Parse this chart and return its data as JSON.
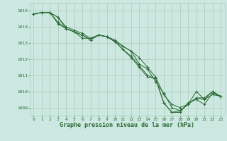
{
  "title": "Graphe pression niveau de la mer (hPa)",
  "background_color": "#cce8e0",
  "grid_color": "#aaccbb",
  "line_color": "#2d6a35",
  "xlim": [
    -0.5,
    23.5
  ],
  "ylim": [
    1008.5,
    1015.5
  ],
  "xticks": [
    0,
    1,
    2,
    3,
    4,
    5,
    6,
    7,
    8,
    9,
    10,
    11,
    12,
    13,
    14,
    15,
    16,
    17,
    18,
    19,
    20,
    21,
    22,
    23
  ],
  "yticks": [
    1009,
    1010,
    1011,
    1012,
    1013,
    1014,
    1015
  ],
  "series": [
    [
      1014.8,
      1014.9,
      1014.9,
      1014.6,
      1014.0,
      1013.8,
      1013.6,
      1013.3,
      1013.5,
      1013.4,
      1013.2,
      1012.8,
      1012.5,
      1012.1,
      1011.5,
      1010.9,
      1009.8,
      1009.2,
      1009.0,
      1009.2,
      1010.0,
      1009.5,
      1009.8,
      1009.7
    ],
    [
      1014.8,
      1014.9,
      1014.9,
      1014.2,
      1013.9,
      1013.7,
      1013.5,
      1013.2,
      1013.5,
      1013.4,
      1013.1,
      1012.6,
      1012.2,
      1011.6,
      1011.0,
      1010.8,
      1009.3,
      1008.7,
      1008.7,
      1009.3,
      1009.5,
      1009.2,
      1009.9,
      1009.7
    ],
    [
      1014.8,
      1014.9,
      1014.9,
      1014.3,
      1013.9,
      1013.7,
      1013.3,
      1013.3,
      1013.5,
      1013.4,
      1013.1,
      1012.8,
      1012.5,
      1011.7,
      1011.4,
      1010.6,
      1009.9,
      1009.0,
      1008.8,
      1009.2,
      1009.6,
      1009.6,
      1010.0,
      1009.7
    ],
    [
      1014.8,
      1014.9,
      1014.9,
      1014.6,
      1013.9,
      1013.7,
      1013.5,
      1013.2,
      1013.5,
      1013.4,
      1013.1,
      1012.6,
      1012.1,
      1011.5,
      1010.9,
      1010.8,
      1009.3,
      1008.7,
      1008.8,
      1009.2,
      1009.6,
      1009.5,
      1010.0,
      1009.7
    ]
  ],
  "title_fontsize": 6.0,
  "tick_fontsize": 4.5,
  "label_color": "#2d6a35"
}
